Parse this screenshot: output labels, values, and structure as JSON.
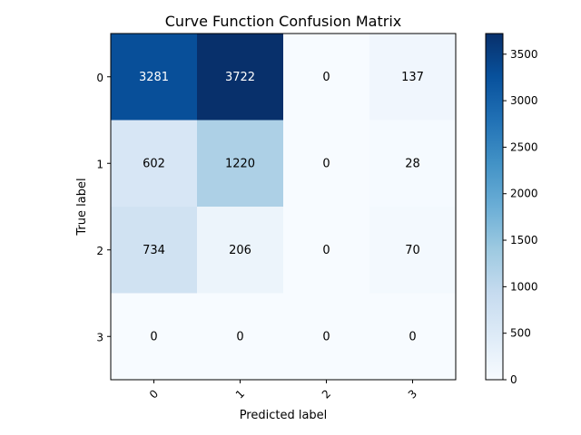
{
  "chart_data": {
    "type": "heatmap",
    "title": "Curve Function Confusion Matrix",
    "xlabel": "Predicted label",
    "ylabel": "True label",
    "x_categories": [
      "0",
      "1",
      "2",
      "3"
    ],
    "y_categories": [
      "0",
      "1",
      "2",
      "3"
    ],
    "values": [
      [
        3281,
        3722,
        0,
        137
      ],
      [
        602,
        1220,
        0,
        28
      ],
      [
        734,
        206,
        0,
        70
      ],
      [
        0,
        0,
        0,
        0
      ]
    ],
    "colormap": "Blues",
    "colorbar": {
      "range": [
        0,
        3722
      ],
      "ticks": [
        0,
        500,
        1000,
        1500,
        2000,
        2500,
        3000,
        3500
      ]
    },
    "x_tick_rotation": "45 degrees",
    "grid": false
  }
}
